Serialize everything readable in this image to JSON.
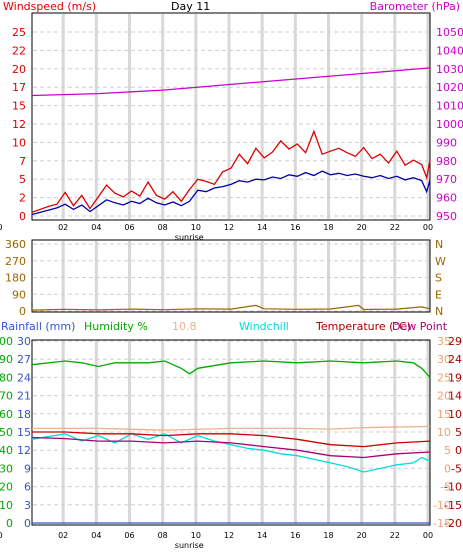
{
  "chart_data": [
    {
      "type": "line",
      "panel": "wind-barometer",
      "title": "Day 11",
      "left_axis_label": "Windspeed (m/s)",
      "right_axis_label": "Barometer (hPa)",
      "x_ticks": [
        "02",
        "04",
        "06",
        "08",
        "10",
        "12",
        "14",
        "16",
        "18",
        "20",
        "22",
        "00",
        "0"
      ],
      "x_marker": "sunrise",
      "left_ticks": [
        "0",
        "2",
        "5",
        "7",
        "10",
        "12",
        "15",
        "17",
        "20",
        "22",
        "25"
      ],
      "left_ylim": [
        0,
        25
      ],
      "right_ticks": [
        "950",
        "960",
        "970",
        "980",
        "990",
        "1000",
        "1010",
        "1020",
        "1030",
        "1040",
        "1050"
      ],
      "right_ylim": [
        950,
        1050
      ],
      "series": [
        {
          "color": "#dd0000",
          "axis": "left",
          "points": [
            [
              0,
              0.5
            ],
            [
              1,
              1.3
            ],
            [
              1.5,
              1.6
            ],
            [
              2,
              3.2
            ],
            [
              2.5,
              1.4
            ],
            [
              3,
              2.8
            ],
            [
              3.5,
              1.0
            ],
            [
              4,
              2.6
            ],
            [
              4.5,
              4.2
            ],
            [
              5,
              3.1
            ],
            [
              5.5,
              2.6
            ],
            [
              6,
              3.4
            ],
            [
              6.5,
              2.7
            ],
            [
              7,
              4.6
            ],
            [
              7.5,
              2.8
            ],
            [
              8,
              2.3
            ],
            [
              8.5,
              3.3
            ],
            [
              9,
              2.0
            ],
            [
              9.5,
              3.6
            ],
            [
              10,
              5.0
            ],
            [
              10.5,
              4.7
            ],
            [
              11,
              4.3
            ],
            [
              11.5,
              6.0
            ],
            [
              12,
              6.5
            ],
            [
              12.5,
              8.4
            ],
            [
              13,
              7.1
            ],
            [
              13.5,
              9.2
            ],
            [
              14,
              7.9
            ],
            [
              14.5,
              8.7
            ],
            [
              15,
              10.2
            ],
            [
              15.5,
              9.1
            ],
            [
              16,
              9.8
            ],
            [
              16.5,
              8.6
            ],
            [
              17,
              11.5
            ],
            [
              17.5,
              8.4
            ],
            [
              18,
              8.8
            ],
            [
              18.5,
              9.2
            ],
            [
              19,
              8.6
            ],
            [
              19.5,
              8.1
            ],
            [
              20,
              9.3
            ],
            [
              20.5,
              7.8
            ],
            [
              21,
              8.4
            ],
            [
              21.5,
              7.2
            ],
            [
              22,
              8.8
            ],
            [
              22.5,
              6.9
            ],
            [
              23,
              7.6
            ],
            [
              23.5,
              7.0
            ],
            [
              23.8,
              5.2
            ],
            [
              24,
              7.6
            ]
          ]
        },
        {
          "color": "#0000aa",
          "axis": "left",
          "points": [
            [
              0,
              0.2
            ],
            [
              1,
              0.8
            ],
            [
              1.5,
              1.1
            ],
            [
              2,
              1.6
            ],
            [
              2.5,
              0.9
            ],
            [
              3,
              1.5
            ],
            [
              3.5,
              0.6
            ],
            [
              4,
              1.4
            ],
            [
              4.5,
              2.2
            ],
            [
              5,
              1.8
            ],
            [
              5.5,
              1.5
            ],
            [
              6,
              2.0
            ],
            [
              6.5,
              1.7
            ],
            [
              7,
              2.4
            ],
            [
              7.5,
              1.8
            ],
            [
              8,
              1.5
            ],
            [
              8.5,
              1.9
            ],
            [
              9,
              1.4
            ],
            [
              9.5,
              2.0
            ],
            [
              10,
              3.5
            ],
            [
              10.5,
              3.3
            ],
            [
              11,
              3.8
            ],
            [
              11.5,
              4.0
            ],
            [
              12,
              4.3
            ],
            [
              12.5,
              4.8
            ],
            [
              13,
              4.6
            ],
            [
              13.5,
              5.0
            ],
            [
              14,
              4.9
            ],
            [
              14.5,
              5.3
            ],
            [
              15,
              5.1
            ],
            [
              15.5,
              5.6
            ],
            [
              16,
              5.4
            ],
            [
              16.5,
              5.9
            ],
            [
              17,
              5.5
            ],
            [
              17.5,
              6.1
            ],
            [
              18,
              5.6
            ],
            [
              18.5,
              5.8
            ],
            [
              19,
              5.5
            ],
            [
              19.5,
              5.7
            ],
            [
              20,
              5.4
            ],
            [
              20.5,
              5.2
            ],
            [
              21,
              5.5
            ],
            [
              21.5,
              5.1
            ],
            [
              22,
              5.4
            ],
            [
              22.5,
              4.9
            ],
            [
              23,
              5.2
            ],
            [
              23.5,
              4.8
            ],
            [
              23.8,
              3.3
            ],
            [
              24,
              4.9
            ]
          ]
        },
        {
          "color": "#cc00cc",
          "axis": "right",
          "points": [
            [
              0,
              1015.5
            ],
            [
              4,
              1016.5
            ],
            [
              8,
              1018.5
            ],
            [
              12,
              1021.5
            ],
            [
              16,
              1024.5
            ],
            [
              20,
              1027.5
            ],
            [
              22,
              1029
            ],
            [
              24,
              1030.5
            ]
          ]
        }
      ]
    },
    {
      "type": "line",
      "panel": "wind-direction",
      "left_ticks": [
        "0",
        "90",
        "180",
        "270",
        "360"
      ],
      "right_ticks": [
        "N",
        "E",
        "S",
        "W",
        "N"
      ],
      "ylim": [
        0,
        360
      ],
      "series": [
        {
          "color": "#996600",
          "points": [
            [
              0,
              5
            ],
            [
              2,
              9
            ],
            [
              4,
              6
            ],
            [
              6,
              10
            ],
            [
              8,
              7
            ],
            [
              10,
              12
            ],
            [
              12,
              10
            ],
            [
              13.5,
              30
            ],
            [
              14,
              12
            ],
            [
              16,
              9
            ],
            [
              18,
              11
            ],
            [
              19.7,
              30
            ],
            [
              20,
              8
            ],
            [
              22,
              10
            ],
            [
              23.5,
              22
            ],
            [
              24,
              12
            ]
          ]
        }
      ]
    },
    {
      "type": "line",
      "panel": "humidity-temperature",
      "headers": [
        {
          "text": "Rainfall (mm)",
          "color": "#3355cc"
        },
        {
          "text": "Humidity %",
          "color": "#00aa00"
        },
        {
          "text": "10.8",
          "color": "#f0b090"
        },
        {
          "text": "Windchill",
          "color": "#00dddd"
        },
        {
          "text": "Temperature (°C)",
          "color": "#aa0000"
        },
        {
          "text": "Dew Point",
          "color": "#aa0077"
        }
      ],
      "x_ticks": [
        "02",
        "04",
        "06",
        "08",
        "10",
        "12",
        "14",
        "16",
        "18",
        "20",
        "22",
        "00",
        "0"
      ],
      "x_marker": "sunrise",
      "rain_ticks": [
        "0",
        "3",
        "6",
        "9",
        "12",
        "15",
        "18",
        "21",
        "24",
        "27",
        "30"
      ],
      "humidity_ticks": [
        "0",
        "10",
        "20",
        "30",
        "40",
        "50",
        "60",
        "70",
        "80",
        "90",
        "100"
      ],
      "temp_ticks_a": [
        "-15",
        "-10",
        "-5",
        "0",
        "5",
        "10",
        "15",
        "20",
        "25",
        "30",
        "35"
      ],
      "temp_ticks_b": [
        "-20",
        "-15",
        "-10",
        "-5",
        "0",
        "5",
        "10",
        "14",
        "19",
        "24",
        "29"
      ],
      "series": [
        {
          "color": "#00aa00",
          "axis": "humidity",
          "points": [
            [
              0,
              87
            ],
            [
              2,
              89
            ],
            [
              3,
              88
            ],
            [
              4,
              86
            ],
            [
              5,
              88
            ],
            [
              7,
              88
            ],
            [
              8,
              89
            ],
            [
              9,
              85
            ],
            [
              9.5,
              82
            ],
            [
              10,
              85
            ],
            [
              12,
              88
            ],
            [
              14,
              89
            ],
            [
              16,
              88
            ],
            [
              18,
              89
            ],
            [
              20,
              88
            ],
            [
              22,
              89
            ],
            [
              23,
              88
            ],
            [
              23.5,
              85
            ],
            [
              24,
              80
            ]
          ]
        },
        {
          "color": "#f0b090",
          "axis": "temp",
          "points": [
            [
              0,
              11
            ],
            [
              4,
              11
            ],
            [
              8,
              10.5
            ],
            [
              12,
              11
            ],
            [
              16,
              11
            ],
            [
              18,
              10.8
            ],
            [
              20,
              11.2
            ],
            [
              24,
              11.5
            ]
          ]
        },
        {
          "color": "#00dddd",
          "axis": "temp",
          "points": [
            [
              0,
              8
            ],
            [
              2,
              9.5
            ],
            [
              3,
              7.5
            ],
            [
              4,
              9
            ],
            [
              5,
              7
            ],
            [
              6,
              9.5
            ],
            [
              7,
              8
            ],
            [
              8,
              9.5
            ],
            [
              9,
              7
            ],
            [
              10,
              9
            ],
            [
              11,
              7.5
            ],
            [
              12,
              6.5
            ],
            [
              13,
              5.5
            ],
            [
              14,
              5
            ],
            [
              15,
              4
            ],
            [
              16,
              3.5
            ],
            [
              17,
              2.5
            ],
            [
              18,
              1.5
            ],
            [
              19,
              0.5
            ],
            [
              20,
              -1
            ],
            [
              21,
              0
            ],
            [
              22,
              1
            ],
            [
              23,
              1.5
            ],
            [
              23.5,
              3
            ],
            [
              24,
              2
            ]
          ]
        },
        {
          "color": "#cc0000",
          "axis": "temp",
          "points": [
            [
              0,
              10
            ],
            [
              2,
              10
            ],
            [
              4,
              9.5
            ],
            [
              6,
              9.5
            ],
            [
              8,
              9
            ],
            [
              10,
              9.5
            ],
            [
              12,
              9.5
            ],
            [
              14,
              9
            ],
            [
              16,
              8
            ],
            [
              18,
              6.5
            ],
            [
              20,
              6
            ],
            [
              22,
              7
            ],
            [
              24,
              7.5
            ]
          ]
        },
        {
          "color": "#aa0077",
          "axis": "temp",
          "points": [
            [
              0,
              8.5
            ],
            [
              2,
              8.2
            ],
            [
              4,
              7.5
            ],
            [
              6,
              7.5
            ],
            [
              8,
              7
            ],
            [
              10,
              7.5
            ],
            [
              12,
              7
            ],
            [
              14,
              6
            ],
            [
              16,
              5
            ],
            [
              18,
              3.5
            ],
            [
              20,
              3
            ],
            [
              22,
              4
            ],
            [
              24,
              4.5
            ]
          ]
        },
        {
          "color": "#3355cc",
          "axis": "rain",
          "points": [
            [
              0,
              0
            ],
            [
              24,
              0
            ]
          ]
        }
      ]
    }
  ]
}
